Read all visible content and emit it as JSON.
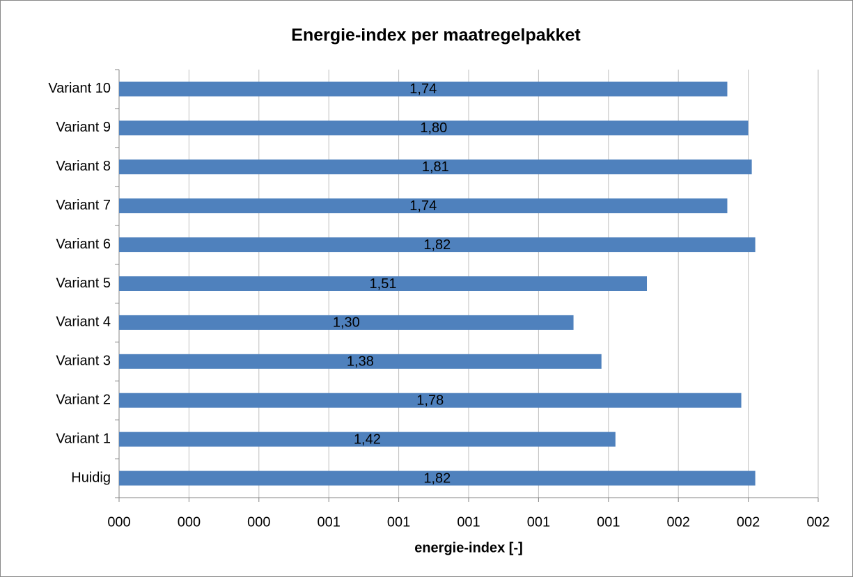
{
  "chart_data": {
    "type": "bar",
    "orientation": "horizontal",
    "title": "Energie-index per maatregelpakket",
    "x_label": "energie-index [-]",
    "categories": [
      "Variant 10",
      "Variant 9",
      "Variant 8",
      "Variant 7",
      "Variant 6",
      "Variant 5",
      "Variant 4",
      "Variant 3",
      "Variant 2",
      "Variant 1",
      "Huidig"
    ],
    "values": [
      1.74,
      1.8,
      1.81,
      1.74,
      1.82,
      1.51,
      1.3,
      1.38,
      1.78,
      1.42,
      1.82
    ],
    "value_labels": [
      "1,74",
      "1,80",
      "1,81",
      "1,74",
      "1,82",
      "1,51",
      "1,30",
      "1,38",
      "1,78",
      "1,42",
      "1,82"
    ],
    "color": "#4f81bd",
    "xlim": [
      0,
      2
    ],
    "xticks": [
      {
        "value": 0,
        "label": "000"
      },
      {
        "value": 0.2,
        "label": "000"
      },
      {
        "value": 0.4,
        "label": "000"
      },
      {
        "value": 0.6,
        "label": "001"
      },
      {
        "value": 0.8,
        "label": "001"
      },
      {
        "value": 1.0,
        "label": "001"
      },
      {
        "value": 1.2,
        "label": "001"
      },
      {
        "value": 1.4,
        "label": "001"
      },
      {
        "value": 1.6,
        "label": "002"
      },
      {
        "value": 1.8,
        "label": "002"
      },
      {
        "value": 2.0,
        "label": "002"
      }
    ],
    "grid": true
  }
}
